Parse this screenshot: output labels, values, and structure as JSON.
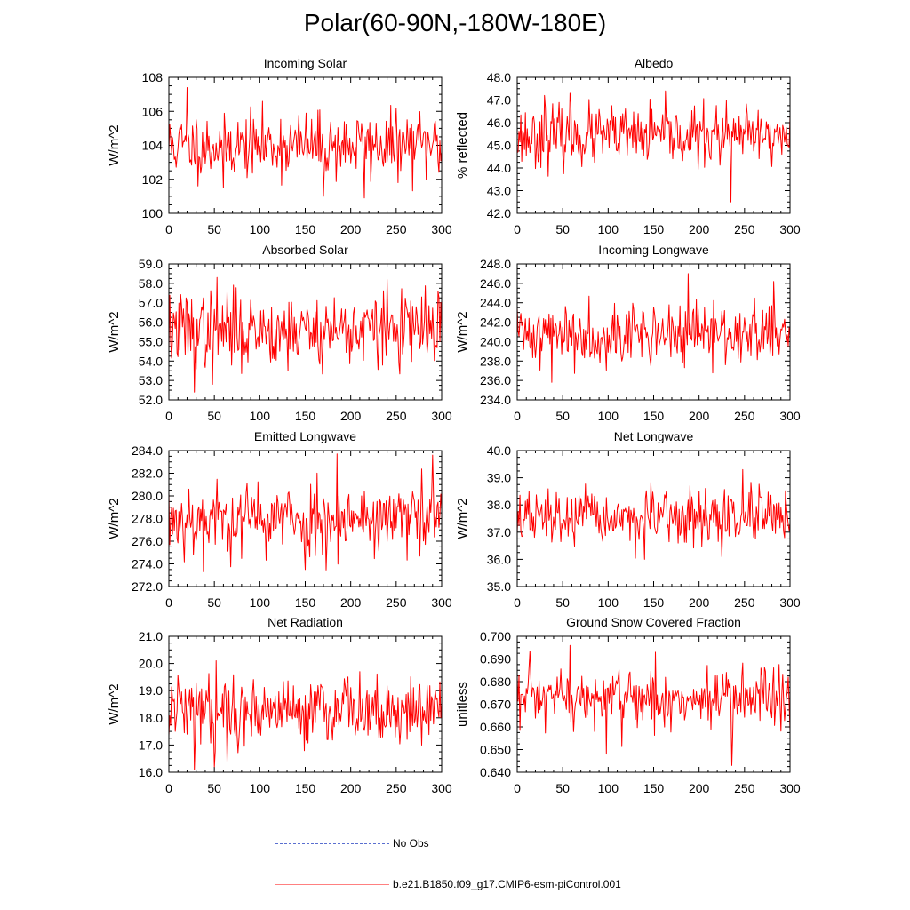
{
  "figure": {
    "title": "Polar(60-90N,-180W-180E)"
  },
  "legend": {
    "entries": [
      {
        "label": "No Obs",
        "color": "#5a6fd0",
        "style": "dashed"
      },
      {
        "label": "b.e21.B1850.f09_g17.CMIP6-esm-piControl.001",
        "color": "#ff0000",
        "style": "solid"
      }
    ]
  },
  "chart_data": [
    {
      "type": "line",
      "title": "Incoming Solar",
      "ylabel": "W/m^2",
      "xlabel": "",
      "xlim": [
        0,
        300
      ],
      "ylim": [
        100,
        108
      ],
      "xticks": [
        0,
        50,
        100,
        150,
        200,
        250,
        300
      ],
      "yticks": [
        100,
        102,
        104,
        106,
        108
      ],
      "yticklabels": [
        "100",
        "102",
        "104",
        "106",
        "108"
      ],
      "mean": 104.0,
      "std": 0.95,
      "seed": 11,
      "extremes": [
        [
          20,
          107.4
        ],
        [
          60,
          101.5
        ],
        [
          170,
          101.0
        ],
        [
          215,
          100.9
        ]
      ],
      "series": [
        {
          "name": "b.e21.B1850.f09_g17.CMIP6-esm-piControl.001",
          "color": "#ff0000"
        }
      ]
    },
    {
      "type": "line",
      "title": "Albedo",
      "ylabel": "% reflected",
      "xlabel": "",
      "xlim": [
        0,
        300
      ],
      "ylim": [
        42.0,
        48.0
      ],
      "xticks": [
        0,
        50,
        100,
        150,
        200,
        250,
        300
      ],
      "yticks": [
        42,
        43,
        44,
        45,
        46,
        47,
        48
      ],
      "yticklabels": [
        "42.0",
        "43.0",
        "44.0",
        "45.0",
        "46.0",
        "47.0",
        "48.0"
      ],
      "mean": 45.4,
      "std": 0.65,
      "seed": 23,
      "extremes": [
        [
          30,
          47.2
        ],
        [
          58,
          47.3
        ],
        [
          235,
          42.5
        ]
      ],
      "series": [
        {
          "name": "b.e21.B1850.f09_g17.CMIP6-esm-piControl.001",
          "color": "#ff0000"
        }
      ]
    },
    {
      "type": "line",
      "title": "Absorbed Solar",
      "ylabel": "W/m^2",
      "xlabel": "",
      "xlim": [
        0,
        300
      ],
      "ylim": [
        52.0,
        59.0
      ],
      "xticks": [
        0,
        50,
        100,
        150,
        200,
        250,
        300
      ],
      "yticks": [
        52,
        53,
        54,
        55,
        56,
        57,
        58,
        59
      ],
      "yticklabels": [
        "52.0",
        "53.0",
        "54.0",
        "55.0",
        "56.0",
        "57.0",
        "58.0",
        "59.0"
      ],
      "mean": 55.6,
      "std": 0.95,
      "seed": 37,
      "extremes": [
        [
          28,
          52.4
        ],
        [
          53,
          58.3
        ],
        [
          48,
          52.8
        ],
        [
          240,
          58.2
        ]
      ],
      "series": [
        {
          "name": "b.e21.B1850.f09_g17.CMIP6-esm-piControl.001",
          "color": "#ff0000"
        }
      ]
    },
    {
      "type": "line",
      "title": "Incoming Longwave",
      "ylabel": "W/m^2",
      "xlabel": "",
      "xlim": [
        0,
        300
      ],
      "ylim": [
        234.0,
        248.0
      ],
      "xticks": [
        0,
        50,
        100,
        150,
        200,
        250,
        300
      ],
      "yticks": [
        234,
        236,
        238,
        240,
        242,
        244,
        246,
        248
      ],
      "yticklabels": [
        "234.0",
        "236.0",
        "238.0",
        "240.0",
        "242.0",
        "244.0",
        "246.0",
        "248.0"
      ],
      "mean": 240.8,
      "std": 1.6,
      "seed": 41,
      "extremes": [
        [
          188,
          247.0
        ],
        [
          38,
          235.8
        ],
        [
          282,
          246.2
        ]
      ],
      "series": [
        {
          "name": "b.e21.B1850.f09_g17.CMIP6-esm-piControl.001",
          "color": "#ff0000"
        }
      ]
    },
    {
      "type": "line",
      "title": "Emitted Longwave",
      "ylabel": "W/m^2",
      "xlabel": "",
      "xlim": [
        0,
        300
      ],
      "ylim": [
        272.0,
        284.0
      ],
      "xticks": [
        0,
        50,
        100,
        150,
        200,
        250,
        300
      ],
      "yticks": [
        272,
        274,
        276,
        278,
        280,
        282,
        284
      ],
      "yticklabels": [
        "272.0",
        "274.0",
        "276.0",
        "278.0",
        "280.0",
        "282.0",
        "284.0"
      ],
      "mean": 278.0,
      "std": 1.6,
      "seed": 53,
      "extremes": [
        [
          185,
          283.7
        ],
        [
          290,
          283.6
        ],
        [
          38,
          273.3
        ],
        [
          150,
          273.5
        ]
      ],
      "series": [
        {
          "name": "b.e21.B1850.f09_g17.CMIP6-esm-piControl.001",
          "color": "#ff0000"
        }
      ]
    },
    {
      "type": "line",
      "title": "Net Longwave",
      "ylabel": "W/m^2",
      "xlabel": "",
      "xlim": [
        0,
        300
      ],
      "ylim": [
        35.0,
        40.0
      ],
      "xticks": [
        0,
        50,
        100,
        150,
        200,
        250,
        300
      ],
      "yticks": [
        35,
        36,
        37,
        38,
        39,
        40
      ],
      "yticklabels": [
        "35.0",
        "36.0",
        "37.0",
        "38.0",
        "39.0",
        "40.0"
      ],
      "mean": 37.5,
      "std": 0.5,
      "seed": 67,
      "extremes": [
        [
          248,
          39.3
        ],
        [
          140,
          36.0
        ],
        [
          225,
          36.1
        ]
      ],
      "series": [
        {
          "name": "b.e21.B1850.f09_g17.CMIP6-esm-piControl.001",
          "color": "#ff0000"
        }
      ]
    },
    {
      "type": "line",
      "title": "Net Radiation",
      "ylabel": "W/m^2",
      "xlabel": "",
      "xlim": [
        0,
        300
      ],
      "ylim": [
        16.0,
        21.0
      ],
      "xticks": [
        0,
        50,
        100,
        150,
        200,
        250,
        300
      ],
      "yticks": [
        16,
        17,
        18,
        19,
        20,
        21
      ],
      "yticklabels": [
        "16.0",
        "17.0",
        "18.0",
        "19.0",
        "20.0",
        "21.0"
      ],
      "mean": 18.3,
      "std": 0.62,
      "seed": 79,
      "extremes": [
        [
          52,
          20.1
        ],
        [
          28,
          16.1
        ],
        [
          50,
          16.2
        ],
        [
          210,
          19.7
        ]
      ],
      "series": [
        {
          "name": "b.e21.B1850.f09_g17.CMIP6-esm-piControl.001",
          "color": "#ff0000"
        }
      ]
    },
    {
      "type": "line",
      "title": "Ground Snow Covered Fraction",
      "ylabel": "unitless",
      "xlabel": "",
      "xlim": [
        0,
        300
      ],
      "ylim": [
        0.64,
        0.7
      ],
      "xticks": [
        0,
        50,
        100,
        150,
        200,
        250,
        300
      ],
      "yticks": [
        0.64,
        0.65,
        0.66,
        0.67,
        0.68,
        0.69,
        0.7
      ],
      "yticklabels": [
        "0.640",
        "0.650",
        "0.660",
        "0.670",
        "0.680",
        "0.690",
        "0.700"
      ],
      "mean": 0.672,
      "std": 0.007,
      "seed": 97,
      "extremes": [
        [
          58,
          0.696
        ],
        [
          152,
          0.693
        ],
        [
          236,
          0.643
        ],
        [
          98,
          0.648
        ]
      ],
      "series": [
        {
          "name": "b.e21.B1850.f09_g17.CMIP6-esm-piControl.001",
          "color": "#ff0000"
        }
      ]
    }
  ]
}
